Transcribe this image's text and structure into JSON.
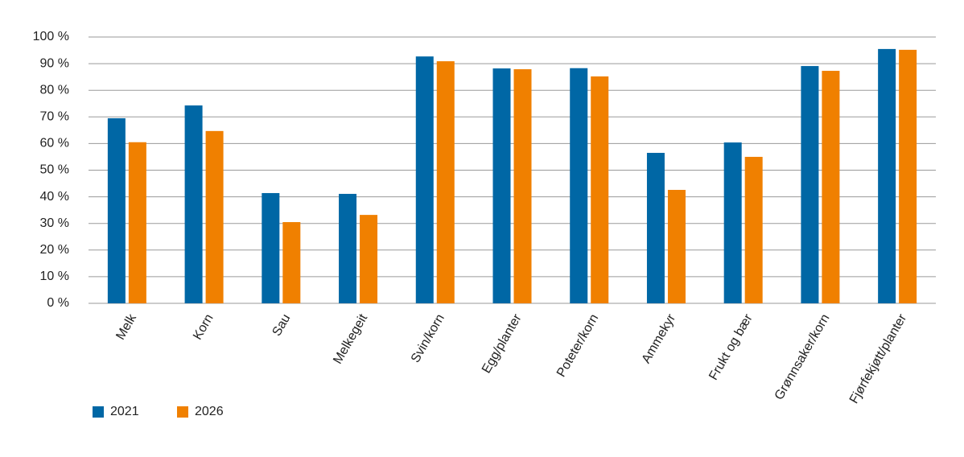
{
  "chart_data": {
    "type": "bar",
    "categories": [
      "Melk",
      "Korn",
      "Sau",
      "Melkegeit",
      "Svin/korn",
      "Egg/planter",
      "Poteter/korn",
      "Ammekyr",
      "Frukt og bær",
      "Grønnsaker/korn",
      "Fjørfekjøtt/planter"
    ],
    "series": [
      {
        "name": "2021",
        "color": "#0067a5",
        "values": [
          69.5,
          74.3,
          41.4,
          41.1,
          92.7,
          88.2,
          88.3,
          56.5,
          60.4,
          89.1,
          95.5
        ]
      },
      {
        "name": "2026",
        "color": "#f08000",
        "values": [
          60.5,
          64.7,
          30.5,
          33.2,
          90.9,
          87.9,
          85.2,
          42.6,
          55.0,
          87.3,
          95.2
        ]
      }
    ],
    "ylim": [
      0,
      100
    ],
    "yticks": [
      {
        "value": 0,
        "label": "0 %"
      },
      {
        "value": 10,
        "label": "10 %"
      },
      {
        "value": 20,
        "label": "20 %"
      },
      {
        "value": 30,
        "label": "30 %"
      },
      {
        "value": 40,
        "label": "40 %"
      },
      {
        "value": 50,
        "label": "50 %"
      },
      {
        "value": 60,
        "label": "60 %"
      },
      {
        "value": 70,
        "label": "70 %"
      },
      {
        "value": 80,
        "label": "80 %"
      },
      {
        "value": 90,
        "label": "90 %"
      },
      {
        "value": 100,
        "label": "100 %"
      }
    ],
    "grid": true,
    "legend": "bottom-left"
  }
}
